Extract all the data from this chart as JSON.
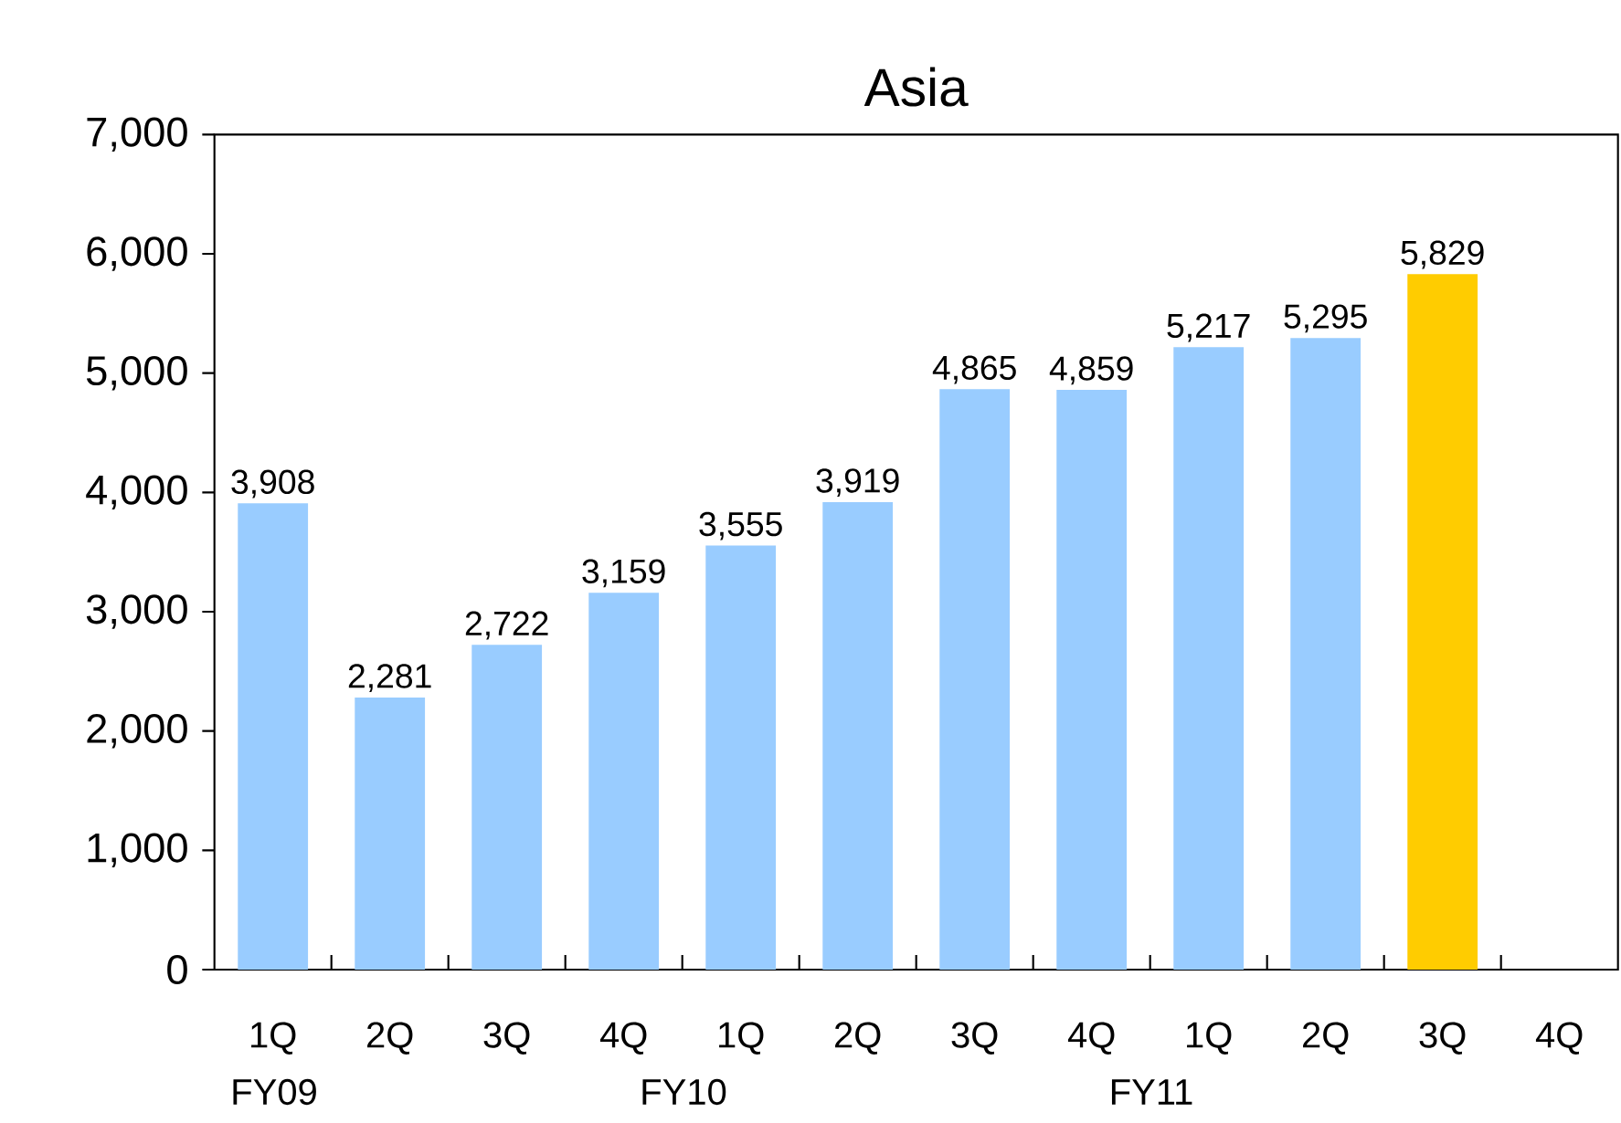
{
  "chart_data": {
    "type": "bar",
    "title": "Asia",
    "categories": [
      "1Q",
      "2Q",
      "3Q",
      "4Q",
      "1Q",
      "2Q",
      "3Q",
      "4Q",
      "1Q",
      "2Q",
      "3Q",
      "4Q"
    ],
    "values": [
      3908,
      2281,
      2722,
      3159,
      3555,
      3919,
      4865,
      4859,
      5217,
      5295,
      5829,
      null
    ],
    "value_labels": [
      "3,908",
      "2,281",
      "2,722",
      "3,159",
      "3,555",
      "3,919",
      "4,865",
      "4,859",
      "5,217",
      "5,295",
      "5,829",
      null
    ],
    "colors": [
      "#99ccff",
      "#99ccff",
      "#99ccff",
      "#99ccff",
      "#99ccff",
      "#99ccff",
      "#99ccff",
      "#99ccff",
      "#99ccff",
      "#99ccff",
      "#ffcc00",
      "#99ccff"
    ],
    "ylim": [
      0,
      7000
    ],
    "yticks": [
      0,
      {
        "value": 1000,
        "label": "1,000"
      },
      {
        "value": 2000,
        "label": "2,000"
      },
      {
        "value": 3000,
        "label": "3,000"
      },
      {
        "value": 4000,
        "label": "4,000"
      },
      {
        "value": 5000,
        "label": "5,000"
      },
      {
        "value": 6000,
        "label": "6,000"
      },
      {
        "value": 7000,
        "label": "7,000"
      }
    ],
    "annotations": [
      "FY09",
      "FY10",
      "FY11"
    ],
    "grid": false
  }
}
